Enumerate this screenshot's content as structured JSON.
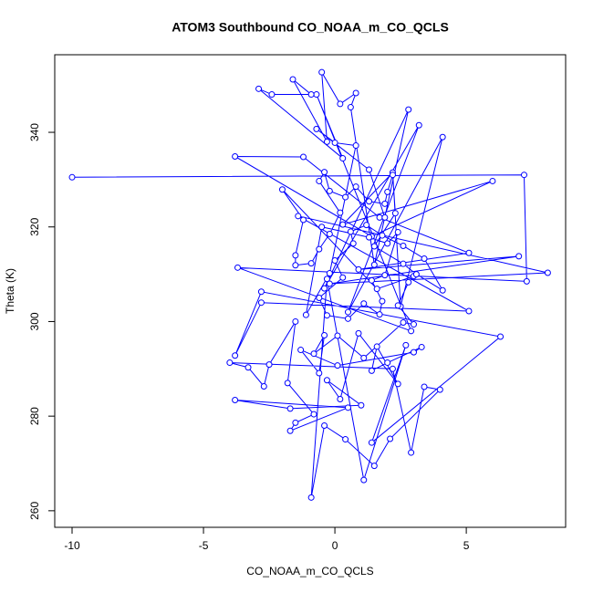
{
  "chart_data": {
    "type": "line",
    "title": "ATOM3 Southbound CO_NOAA_m_CO_QCLS",
    "x_label": "CO_NOAA_m_CO_QCLS",
    "y_label": "Theta (K)",
    "color": "#0000ff",
    "markers": true,
    "xlim": [
      -10.66,
      8.78
    ],
    "ylim": [
      256.5,
      356.4
    ],
    "xticks": [
      -10,
      -5,
      0,
      5
    ],
    "yticks": [
      260,
      280,
      300,
      320,
      340
    ],
    "x": [
      -10.0,
      7.2,
      7.3,
      -3.7,
      2.9,
      -0.7,
      0.3,
      -2.9,
      -2.4,
      -0.9,
      -1.6,
      -0.3,
      -0.5,
      0.2,
      0.8,
      0.6,
      1.5,
      2.8,
      -0.4,
      3.2,
      0.5,
      4.1,
      2.5,
      2.2,
      0.3,
      6.0,
      1.4,
      -3.8,
      -1.2,
      1.7,
      5.1,
      0.9,
      7.0,
      -0.2,
      8.1,
      -1.4,
      5.1,
      -2.8,
      -3.8,
      -2.8,
      6.3,
      1.4,
      2.7,
      1.1,
      -0.3,
      -0.9,
      -0.4,
      0.4,
      1.5,
      2.1,
      4.0,
      3.4,
      2.9,
      2.2,
      -4.0,
      -3.3,
      -2.7,
      -2.5,
      -1.5,
      -1.8,
      -0.8,
      -1.5,
      -1.7,
      0.5,
      -3.8,
      -1.7,
      1.0,
      -0.3,
      0.2,
      0.9,
      2.4,
      1.6,
      1.4,
      2.0,
      3.3,
      3.0,
      0.1,
      -1.3,
      -0.6,
      -0.4,
      -0.8,
      0.1,
      1.1,
      2.6,
      3.0,
      2.4,
      2.8,
      3.0,
      1.6,
      -2.0,
      -1.2,
      -1.5,
      -1.5,
      -0.9,
      -0.6,
      -0.2,
      0.2,
      -0.6,
      -0.4,
      -0.2,
      0.4,
      0.8,
      1.3,
      1.9,
      2.0,
      2.2,
      2.3,
      1.5,
      2.6,
      3.1,
      4.1,
      3.4,
      2.6,
      1.8,
      1.2,
      0.6,
      0.7,
      0.0,
      0.3,
      -0.6,
      -0.3,
      0.5,
      1.1,
      1.7,
      1.8,
      1.4,
      1.9,
      2.4,
      2.0,
      1.3,
      -0.5,
      -1.1,
      -0.2,
      0.8,
      0.0,
      -0.7,
      1.3,
      1.9
    ],
    "values": [
      330.5,
      331.0,
      308.5,
      311.4,
      298.0,
      348.0,
      334.5,
      349.2,
      348.0,
      348.0,
      351.2,
      338.0,
      352.7,
      346.0,
      348.3,
      345.3,
      312.0,
      344.8,
      307.0,
      341.5,
      302.0,
      339.0,
      303.2,
      331.5,
      320.5,
      329.7,
      318.0,
      334.9,
      334.8,
      322.0,
      314.5,
      311.0,
      313.8,
      308.0,
      310.3,
      322.3,
      302.2,
      304.0,
      292.8,
      306.3,
      296.8,
      274.4,
      295.0,
      266.5,
      309.0,
      262.8,
      278.0,
      275.1,
      269.5,
      275.2,
      285.6,
      286.2,
      272.3,
      290.0,
      291.3,
      290.3,
      286.3,
      290.9,
      300.0,
      287.0,
      280.4,
      278.6,
      276.9,
      281.8,
      283.4,
      281.6,
      282.3,
      287.6,
      283.6,
      297.5,
      286.8,
      294.7,
      289.6,
      291.3,
      294.6,
      293.5,
      290.7,
      294.0,
      289.1,
      297.1,
      293.2,
      297.0,
      292.3,
      299.8,
      299.4,
      303.4,
      308.3,
      309.6,
      306.9,
      327.9,
      321.5,
      314.0,
      311.9,
      312.3,
      315.3,
      318.5,
      323.0,
      329.7,
      331.6,
      327.6,
      326.3,
      328.5,
      325.4,
      324.9,
      327.4,
      331.0,
      322.9,
      315.9,
      312.2,
      310.0,
      306.6,
      313.3,
      316.0,
      318.2,
      320.4,
      319.0,
      316.5,
      312.9,
      309.3,
      305.0,
      301.3,
      300.6,
      303.8,
      301.5,
      304.3,
      308.7,
      309.8,
      318.9,
      316.5,
      317.8,
      320.0,
      301.4,
      310.2,
      337.2,
      337.8,
      340.7,
      332.1,
      322.0
    ]
  }
}
